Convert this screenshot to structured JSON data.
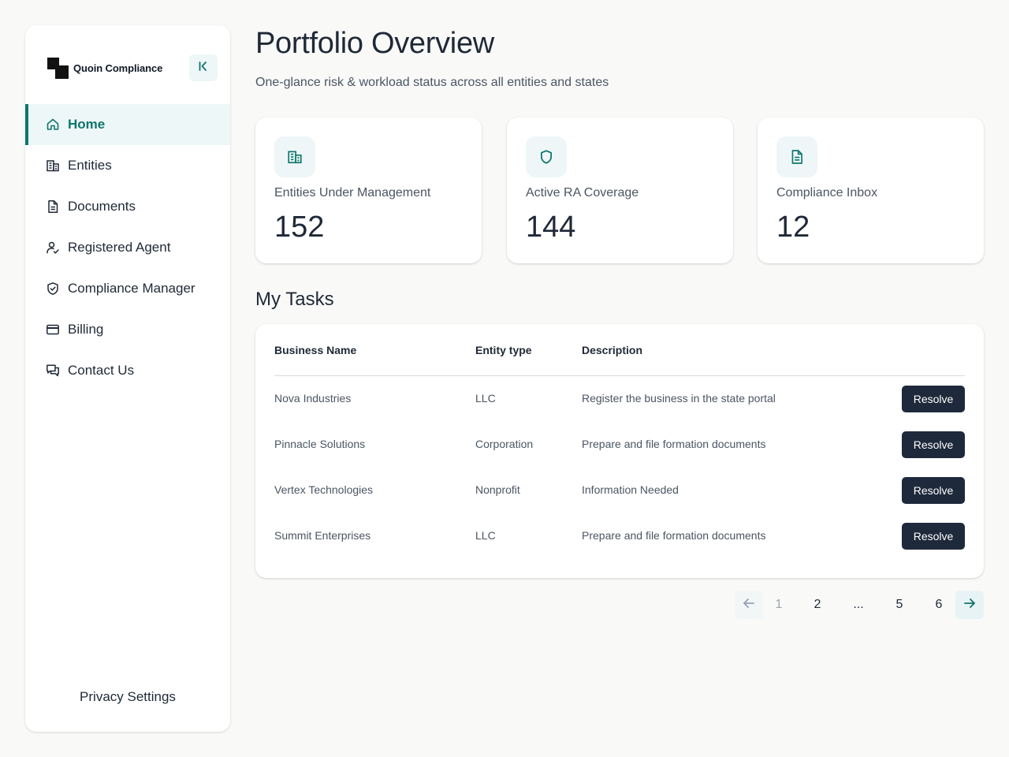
{
  "sidebar": {
    "brand_name": "Quoin Compliance",
    "collapse_icon": "collapse-left-icon",
    "items": [
      {
        "label": "Home",
        "icon": "home-icon",
        "active": true
      },
      {
        "label": "Entities",
        "icon": "building-icon",
        "active": false
      },
      {
        "label": "Documents",
        "icon": "document-icon",
        "active": false
      },
      {
        "label": "Registered Agent",
        "icon": "user-check-icon",
        "active": false
      },
      {
        "label": "Compliance Manager",
        "icon": "shield-check-icon",
        "active": false
      },
      {
        "label": "Billing",
        "icon": "credit-card-icon",
        "active": false
      },
      {
        "label": "Contact Us",
        "icon": "chat-icon",
        "active": false
      }
    ],
    "footer_label": "Privacy Settings"
  },
  "header": {
    "title": "Portfolio Overview",
    "subtitle": "One-glance risk & workload status across all entities and states"
  },
  "stats": [
    {
      "label": "Entities Under Management",
      "value": "152",
      "icon": "building-icon"
    },
    {
      "label": "Active RA Coverage",
      "value": "144",
      "icon": "shield-icon"
    },
    {
      "label": "Compliance Inbox",
      "value": "12",
      "icon": "document-icon"
    }
  ],
  "tasks": {
    "title": "My Tasks",
    "columns": [
      "Business Name",
      "Entity type",
      "Description"
    ],
    "rows": [
      {
        "business": "Nova Industries",
        "type": "LLC",
        "description": "Register the business in the state portal",
        "action": "Resolve"
      },
      {
        "business": "Pinnacle Solutions",
        "type": "Corporation",
        "description": "Prepare and file formation documents",
        "action": "Resolve"
      },
      {
        "business": "Vertex Technologies",
        "type": "Nonprofit",
        "description": "Information Needed",
        "action": "Resolve"
      },
      {
        "business": "Summit Enterprises",
        "type": "LLC",
        "description": "Prepare and file formation documents",
        "action": "Resolve"
      }
    ]
  },
  "pagination": {
    "pages": [
      "1",
      "2",
      "...",
      "5",
      "6"
    ],
    "current": "1",
    "prev_icon": "arrow-left-icon",
    "next_icon": "arrow-right-icon"
  },
  "colors": {
    "accent": "#0f766e",
    "accent_bg": "#eef6f7",
    "button_dark": "#1e293b"
  }
}
